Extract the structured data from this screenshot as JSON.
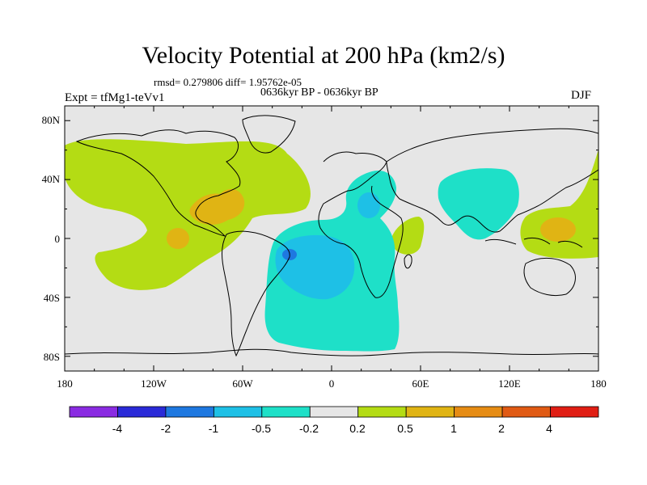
{
  "title": "Velocity Potential at 200 hPa (km2/s)",
  "stats": "rmsd= 0.279806 diff= 1.95762e-05",
  "period": "0636kyr BP - 0636kyr BP",
  "experiment": "Expt = tfMg1-teVv1",
  "season": "DJF",
  "map": {
    "projection": "cylindrical equidistant",
    "background_color": "#e6e6e6",
    "coastline_color": "#000000",
    "lon_ticks": [
      "180",
      "120W",
      "60W",
      "0",
      "60E",
      "120E",
      "180"
    ],
    "lat_ticks": [
      "80N",
      "40N",
      "0",
      "40S",
      "80S"
    ]
  },
  "colorbar": {
    "colors": [
      "#8a2be2",
      "#2a2ad8",
      "#1e78e0",
      "#1ec0e6",
      "#1ee0c8",
      "#e6e6e6",
      "#b4dc14",
      "#e0b414",
      "#e68c14",
      "#e05a14",
      "#e01e14"
    ],
    "labels": [
      "-4",
      "-2",
      "-1",
      "-0.5",
      "-0.2",
      "0.2",
      "0.5",
      "1",
      "2",
      "4"
    ]
  },
  "field_colors": {
    "pos_05": "#b4dc14",
    "pos_1": "#e0b414",
    "pos_2": "#e68c14",
    "neg_02": "#1ee0c8",
    "neg_05": "#1ec0e6",
    "neg_1": "#1e78e0"
  }
}
